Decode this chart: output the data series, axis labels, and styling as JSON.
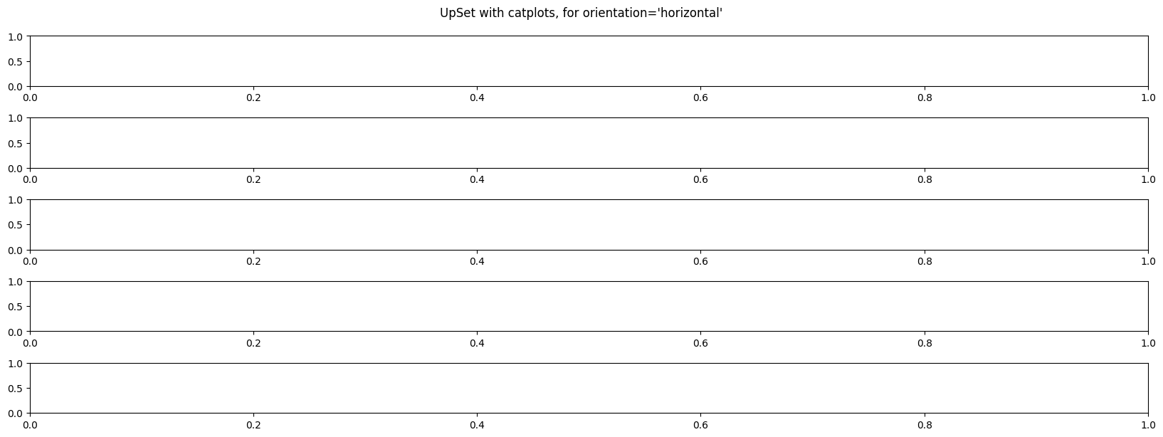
{
  "title": "UpSet with catplots, for orientation='horizontal'",
  "figsize": [
    16.44,
    6.22
  ],
  "dpi": 100
}
